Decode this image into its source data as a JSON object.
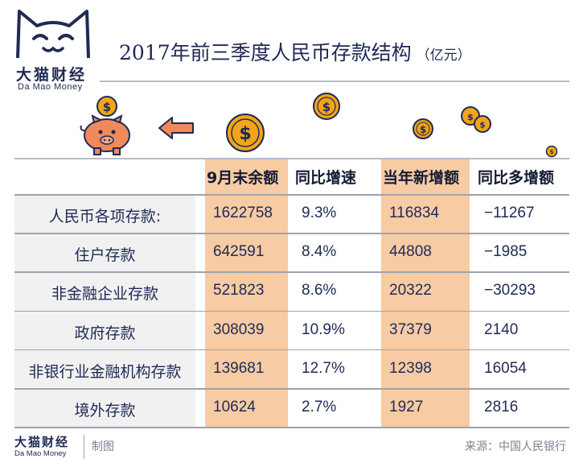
{
  "brand": {
    "name_cn": "大猫财经",
    "name_en": "Da Mao Money"
  },
  "title": "2017年前三季度人民币存款结构",
  "unit": "（亿元）",
  "footer": {
    "made_by": "制图",
    "source": "来源：中国人民银行"
  },
  "colors": {
    "navy": "#1f2a55",
    "highlight": "#f7cba3",
    "row_bg": "#f1f1f1",
    "coin": "#f2a516",
    "pig": "#f08a5a"
  },
  "icons": [
    "cat-logo-icon",
    "piggy-bank-icon",
    "left-arrow-icon",
    "dollar-coin-icon"
  ],
  "chart_data": {
    "type": "table",
    "columns": [
      "9月末余额",
      "同比增速",
      "当年新增额",
      "同比多增额"
    ],
    "highlighted_columns": [
      "9月末余额",
      "当年新增额"
    ],
    "rows": [
      {
        "label": "人民币各项存款:",
        "values": [
          "1622758",
          "9.3%",
          "116834",
          "−11267"
        ]
      },
      {
        "label": "住户存款",
        "values": [
          "642591",
          "8.4%",
          "44808",
          "−1985"
        ]
      },
      {
        "label": "非金融企业存款",
        "values": [
          "521823",
          "8.6%",
          "20322",
          "−30293"
        ]
      },
      {
        "label": "政府存款",
        "values": [
          "308039",
          "10.9%",
          "37379",
          "2140"
        ]
      },
      {
        "label": "非银行业金融机构存款",
        "values": [
          "139681",
          "12.7%",
          "12398",
          "16054"
        ]
      },
      {
        "label": "境外存款",
        "values": [
          "10624",
          "2.7%",
          "1927",
          "2816"
        ]
      }
    ]
  }
}
